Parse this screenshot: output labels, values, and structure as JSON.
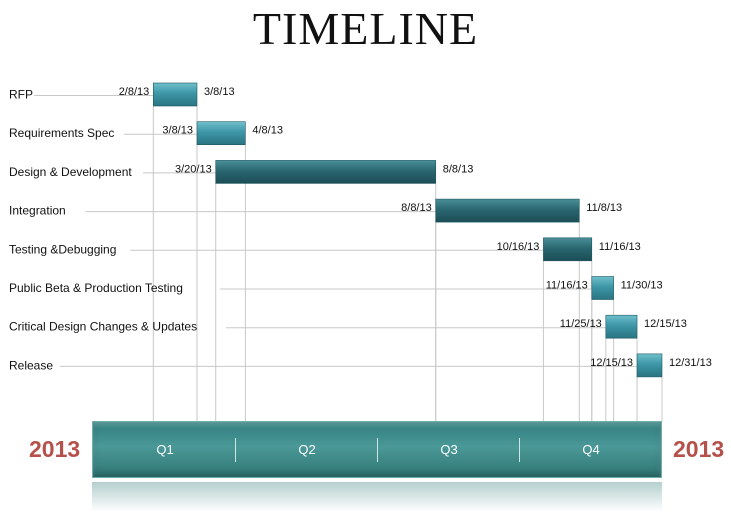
{
  "title": "TIMELINE",
  "years": {
    "left": "2013",
    "right": "2013"
  },
  "quarters": [
    "Q1",
    "Q2",
    "Q3",
    "Q4"
  ],
  "chart_data": {
    "type": "gantt",
    "title": "TIMELINE",
    "x_axis": {
      "type": "date",
      "range": [
        "2013-01-01",
        "2013-12-31"
      ],
      "labels": [
        "Q1",
        "Q2",
        "Q3",
        "Q4"
      ]
    },
    "tasks": [
      {
        "name": "RFP",
        "start": "2/8/13",
        "end": "3/8/13",
        "start_date": "2013-02-08",
        "end_date": "2013-03-08"
      },
      {
        "name": "Requirements Spec",
        "start": "3/8/13",
        "end": "4/8/13",
        "start_date": "2013-03-08",
        "end_date": "2013-04-08"
      },
      {
        "name": "Design & Development",
        "start": "3/20/13",
        "end": "8/8/13",
        "start_date": "2013-03-20",
        "end_date": "2013-08-08"
      },
      {
        "name": "Integration",
        "start": "8/8/13",
        "end": "11/8/13",
        "start_date": "2013-08-08",
        "end_date": "2013-11-08"
      },
      {
        "name": "Testing &Debugging",
        "start": "10/16/13",
        "end": "11/16/13",
        "start_date": "2013-10-16",
        "end_date": "2013-11-16"
      },
      {
        "name": "Public Beta & Production Testing",
        "start": "11/16/13",
        "end": "11/30/13",
        "start_date": "2013-11-16",
        "end_date": "2013-11-30"
      },
      {
        "name": "Critical Design Changes & Updates",
        "start": "11/25/13",
        "end": "12/15/13",
        "start_date": "2013-11-25",
        "end_date": "2013-12-15"
      },
      {
        "name": "Release",
        "start": "12/15/13",
        "end": "12/31/13",
        "start_date": "2013-12-15",
        "end_date": "2013-12-31"
      }
    ],
    "colors": {
      "bar_light": "#3d96a6",
      "bar_dark": "#205c66",
      "grid": "#c8c8c8",
      "year": "#b5504a",
      "band": "#3e8a89"
    }
  }
}
